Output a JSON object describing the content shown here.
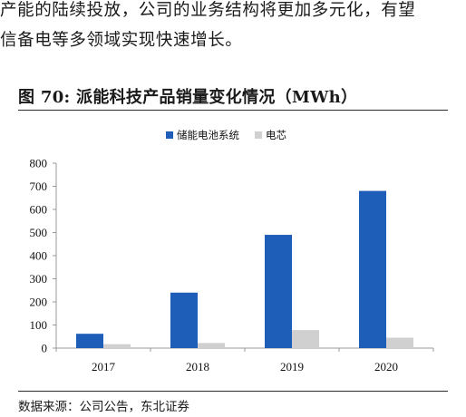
{
  "paragraph": {
    "line1": "产能的陆续投放，公司的业务结构将更加多元化，有望",
    "line2": "信备电等多领域实现快速增长。"
  },
  "figure": {
    "title": "图  70:  派能科技产品销量变化情况（MWh）",
    "source": "数据来源：公司公告，东北证券"
  },
  "chart_data": {
    "type": "bar",
    "title": "",
    "xlabel": "",
    "ylabel": "",
    "categories": [
      "2017",
      "2018",
      "2019",
      "2020"
    ],
    "series": [
      {
        "name": "储能电池系统",
        "color": "#1f5eb8",
        "values": [
          62,
          240,
          490,
          680
        ]
      },
      {
        "name": "电芯",
        "color": "#d0d0d0",
        "values": [
          17,
          22,
          78,
          45
        ]
      }
    ],
    "ylim": [
      0,
      800
    ],
    "yticks": [
      0,
      100,
      200,
      300,
      400,
      500,
      600,
      700,
      800
    ],
    "grid": false,
    "legend": "top-center"
  }
}
